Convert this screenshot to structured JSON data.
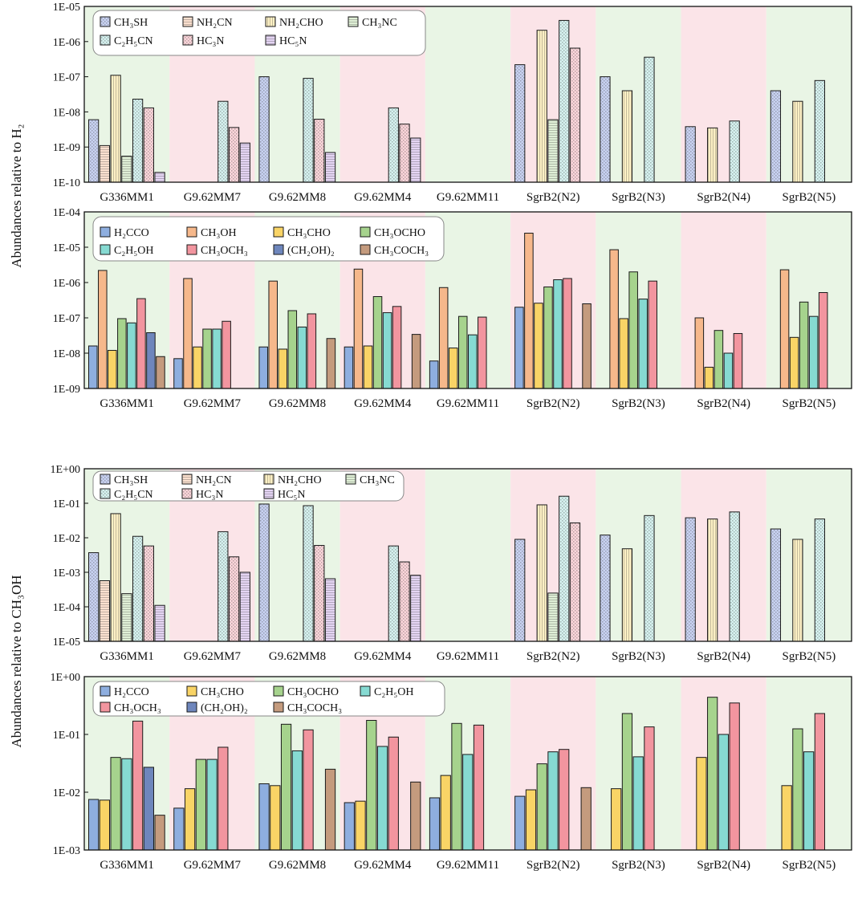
{
  "figure": {
    "ylabel_top": "Abundances relative to H₂",
    "ylabel_bottom": "Abundances relative to CH₃OH"
  },
  "categories": [
    "G336MM1",
    "G9.62MM7",
    "G9.62MM8",
    "G9.62MM4",
    "G9.62MM11",
    "SgrB2(N2)",
    "SgrB2(N3)",
    "SgrB2(N4)",
    "SgrB2(N5)"
  ],
  "band_colors": {
    "green": "#e9f5e5",
    "pink": "#fbe4e8"
  },
  "band_pattern": [
    "green",
    "pink",
    "green",
    "pink",
    "green",
    "pink",
    "green",
    "pink",
    "green"
  ],
  "series_styles": {
    "CH3SH": {
      "color": "#c8d2f2",
      "hatch": "dots"
    },
    "NH2CN": {
      "color": "#fbe0cf",
      "hatch": "hlines"
    },
    "NH2CHO": {
      "color": "#fdf0c4",
      "hatch": "vlines"
    },
    "CH3NC": {
      "color": "#dfefd6",
      "hatch": "hlines"
    },
    "C2H5CN": {
      "color": "#d6f2f0",
      "hatch": "dots"
    },
    "HC3N": {
      "color": "#fbd5da",
      "hatch": "dots"
    },
    "HC5N": {
      "color": "#e4d4f3",
      "hatch": "hlines"
    },
    "H2CCO": {
      "color": "#8eaedf",
      "hatch": "none"
    },
    "CH3OH": {
      "color": "#f6b88b",
      "hatch": "none"
    },
    "CH3CHO": {
      "color": "#f9d466",
      "hatch": "none"
    },
    "CH3OCHO": {
      "color": "#a6d38d",
      "hatch": "none"
    },
    "C2H5OH": {
      "color": "#86dad2",
      "hatch": "none"
    },
    "CH3OCH3": {
      "color": "#f2959f",
      "hatch": "none"
    },
    "CH2OH2": {
      "color": "#6e86bc",
      "hatch": "none"
    },
    "CH3COCH3": {
      "color": "#c49b7e",
      "hatch": "none"
    }
  },
  "chart_data": [
    {
      "type": "bar",
      "title": "",
      "ylabel": "Abundances relative to H₂",
      "yscale": "log",
      "ylim": [
        1e-10,
        1e-05
      ],
      "yticks": [
        "1E-10",
        "1E-09",
        "1E-08",
        "1E-07",
        "1E-06",
        "1E-05"
      ],
      "categories": [
        "G336MM1",
        "G9.62MM7",
        "G9.62MM8",
        "G9.62MM4",
        "G9.62MM11",
        "SgrB2(N2)",
        "SgrB2(N3)",
        "SgrB2(N4)",
        "SgrB2(N5)"
      ],
      "legend_location": "top-left",
      "legend_columns": 4,
      "series": [
        {
          "key": "CH3SH",
          "name": "CH₃SH",
          "values": [
            6e-09,
            null,
            1e-07,
            null,
            null,
            2.2e-07,
            1e-07,
            3.8e-09,
            4e-08
          ]
        },
        {
          "key": "NH2CN",
          "name": "NH₂CN",
          "values": [
            1.1e-09,
            null,
            null,
            null,
            null,
            null,
            null,
            null,
            null
          ]
        },
        {
          "key": "NH2CHO",
          "name": "NH₂CHO",
          "values": [
            1.1e-07,
            null,
            null,
            null,
            null,
            2.1e-06,
            4e-08,
            3.5e-09,
            2e-08
          ]
        },
        {
          "key": "CH3NC",
          "name": "CH₃NC",
          "values": [
            5.5e-10,
            null,
            null,
            null,
            null,
            6e-09,
            null,
            null,
            null
          ]
        },
        {
          "key": "C2H5CN",
          "name": "C₂H₅CN",
          "values": [
            2.3e-08,
            2e-08,
            9e-08,
            1.3e-08,
            null,
            4e-06,
            3.6e-07,
            5.5e-09,
            7.8e-08
          ]
        },
        {
          "key": "HC3N",
          "name": "HC₃N",
          "values": [
            1.3e-08,
            3.6e-09,
            6.2e-09,
            4.5e-09,
            null,
            6.5e-07,
            null,
            null,
            null
          ]
        },
        {
          "key": "HC5N",
          "name": "HC₅N",
          "values": [
            1.9e-10,
            1.3e-09,
            7e-10,
            1.8e-09,
            null,
            null,
            null,
            null,
            null
          ]
        }
      ]
    },
    {
      "type": "bar",
      "title": "",
      "ylabel": "Abundances relative to H₂",
      "yscale": "log",
      "ylim": [
        1e-09,
        0.0001
      ],
      "yticks": [
        "1E-09",
        "1E-08",
        "1E-07",
        "1E-06",
        "1E-05",
        "1E-04"
      ],
      "categories": [
        "G336MM1",
        "G9.62MM7",
        "G9.62MM8",
        "G9.62MM4",
        "G9.62MM11",
        "SgrB2(N2)",
        "SgrB2(N3)",
        "SgrB2(N4)",
        "SgrB2(N5)"
      ],
      "legend_location": "top-left",
      "legend_columns": 4,
      "series": [
        {
          "key": "H2CCO",
          "name": "H₂CCO",
          "values": [
            1.6e-08,
            7e-09,
            1.5e-08,
            1.5e-08,
            6e-09,
            2e-07,
            null,
            null,
            null
          ]
        },
        {
          "key": "CH3OH",
          "name": "CH₃OH",
          "values": [
            2.2e-06,
            1.3e-06,
            1.1e-06,
            2.4e-06,
            7.2e-07,
            2.5e-05,
            8.5e-06,
            1e-07,
            2.3e-06
          ]
        },
        {
          "key": "CH3CHO",
          "name": "CH₃CHO",
          "values": [
            1.2e-08,
            1.5e-08,
            1.3e-08,
            1.6e-08,
            1.4e-08,
            2.6e-07,
            9.5e-08,
            4e-09,
            2.8e-08
          ]
        },
        {
          "key": "CH3OCHO",
          "name": "CH₃OCHO",
          "values": [
            9.5e-08,
            4.8e-08,
            1.6e-07,
            4e-07,
            1.1e-07,
            7.5e-07,
            2e-06,
            4.4e-08,
            2.8e-07
          ]
        },
        {
          "key": "C2H5OH",
          "name": "C₂H₅OH",
          "values": [
            7.2e-08,
            4.8e-08,
            5.5e-08,
            1.4e-07,
            3.3e-08,
            1.2e-06,
            3.4e-07,
            1e-08,
            1.1e-07
          ]
        },
        {
          "key": "CH3OCH3",
          "name": "CH₃OCH₃",
          "values": [
            3.5e-07,
            8e-08,
            1.3e-07,
            2.1e-07,
            1.05e-07,
            1.3e-06,
            1.1e-06,
            3.6e-08,
            5.2e-07
          ]
        },
        {
          "key": "CH2OH2",
          "name": "(CH₂OH)₂",
          "values": [
            3.8e-08,
            null,
            null,
            null,
            null,
            null,
            null,
            null,
            null
          ]
        },
        {
          "key": "CH3COCH3",
          "name": "CH₃COCH₃",
          "values": [
            8e-09,
            null,
            2.6e-08,
            3.4e-08,
            null,
            2.5e-07,
            null,
            null,
            null
          ]
        }
      ]
    },
    {
      "type": "bar",
      "title": "",
      "ylabel": "Abundances relative to CH₃OH",
      "yscale": "log",
      "ylim": [
        1e-05,
        1
      ],
      "yticks": [
        "1E-05",
        "1E-04",
        "1E-03",
        "1E-02",
        "1E-01",
        "1E+00"
      ],
      "categories": [
        "G336MM1",
        "G9.62MM7",
        "G9.62MM8",
        "G9.62MM4",
        "G9.62MM11",
        "SgrB2(N2)",
        "SgrB2(N3)",
        "SgrB2(N4)",
        "SgrB2(N5)"
      ],
      "legend_location": "top-left",
      "legend_columns": 4,
      "series": [
        {
          "key": "CH3SH",
          "name": "CH₃SH",
          "values": [
            0.0037,
            null,
            0.095,
            null,
            null,
            0.009,
            0.012,
            0.038,
            0.018
          ]
        },
        {
          "key": "NH2CN",
          "name": "NH₂CN",
          "values": [
            0.00057,
            null,
            null,
            null,
            null,
            null,
            null,
            null,
            null
          ]
        },
        {
          "key": "NH2CHO",
          "name": "NH₂CHO",
          "values": [
            0.05,
            null,
            null,
            null,
            null,
            0.09,
            0.0048,
            0.035,
            0.009
          ]
        },
        {
          "key": "CH3NC",
          "name": "CH₃NC",
          "values": [
            0.00024,
            null,
            null,
            null,
            null,
            0.00025,
            null,
            null,
            null
          ]
        },
        {
          "key": "C2H5CN",
          "name": "C₂H₅CN",
          "values": [
            0.011,
            0.015,
            0.085,
            0.0058,
            null,
            0.16,
            0.044,
            0.056,
            0.035
          ]
        },
        {
          "key": "HC3N",
          "name": "HC₃N",
          "values": [
            0.0058,
            0.0028,
            0.006,
            0.002,
            null,
            0.027,
            null,
            null,
            null
          ]
        },
        {
          "key": "HC5N",
          "name": "HC₅N",
          "values": [
            0.00011,
            0.001,
            0.00065,
            0.00082,
            null,
            null,
            null,
            null,
            null
          ]
        }
      ]
    },
    {
      "type": "bar",
      "title": "",
      "ylabel": "Abundances relative to CH₃OH",
      "yscale": "log",
      "ylim": [
        0.001,
        1
      ],
      "yticks": [
        "1E-03",
        "1E-02",
        "1E-01",
        "1E+00"
      ],
      "categories": [
        "G336MM1",
        "G9.62MM7",
        "G9.62MM8",
        "G9.62MM4",
        "G9.62MM11",
        "SgrB2(N2)",
        "SgrB2(N3)",
        "SgrB2(N4)",
        "SgrB2(N5)"
      ],
      "legend_location": "top-left",
      "legend_columns": 4,
      "series": [
        {
          "key": "H2CCO",
          "name": "H₂CCO",
          "values": [
            0.0075,
            0.0053,
            0.014,
            0.0066,
            0.008,
            0.0085,
            null,
            null,
            null
          ]
        },
        {
          "key": "CH3CHO",
          "name": "CH₃CHO",
          "values": [
            0.0073,
            0.0115,
            0.013,
            0.007,
            0.0195,
            0.011,
            0.0115,
            0.04,
            0.013
          ]
        },
        {
          "key": "CH3OCHO",
          "name": "CH₃OCHO",
          "values": [
            0.04,
            0.037,
            0.15,
            0.175,
            0.155,
            0.031,
            0.23,
            0.44,
            0.125
          ]
        },
        {
          "key": "C2H5OH",
          "name": "C₂H₅OH",
          "values": [
            0.038,
            0.037,
            0.052,
            0.062,
            0.045,
            0.05,
            0.041,
            0.1,
            0.05
          ]
        },
        {
          "key": "CH3OCH3",
          "name": "CH₃OCH₃",
          "values": [
            0.17,
            0.06,
            0.12,
            0.09,
            0.145,
            0.055,
            0.135,
            0.35,
            0.23
          ]
        },
        {
          "key": "CH2OH2",
          "name": "(CH₂OH)₂",
          "values": [
            0.027,
            null,
            null,
            null,
            null,
            null,
            null,
            null,
            null
          ]
        },
        {
          "key": "CH3COCH3",
          "name": "CH₃COCH₃",
          "values": [
            0.004,
            null,
            0.025,
            0.015,
            null,
            0.012,
            null,
            null,
            null
          ]
        }
      ]
    }
  ]
}
